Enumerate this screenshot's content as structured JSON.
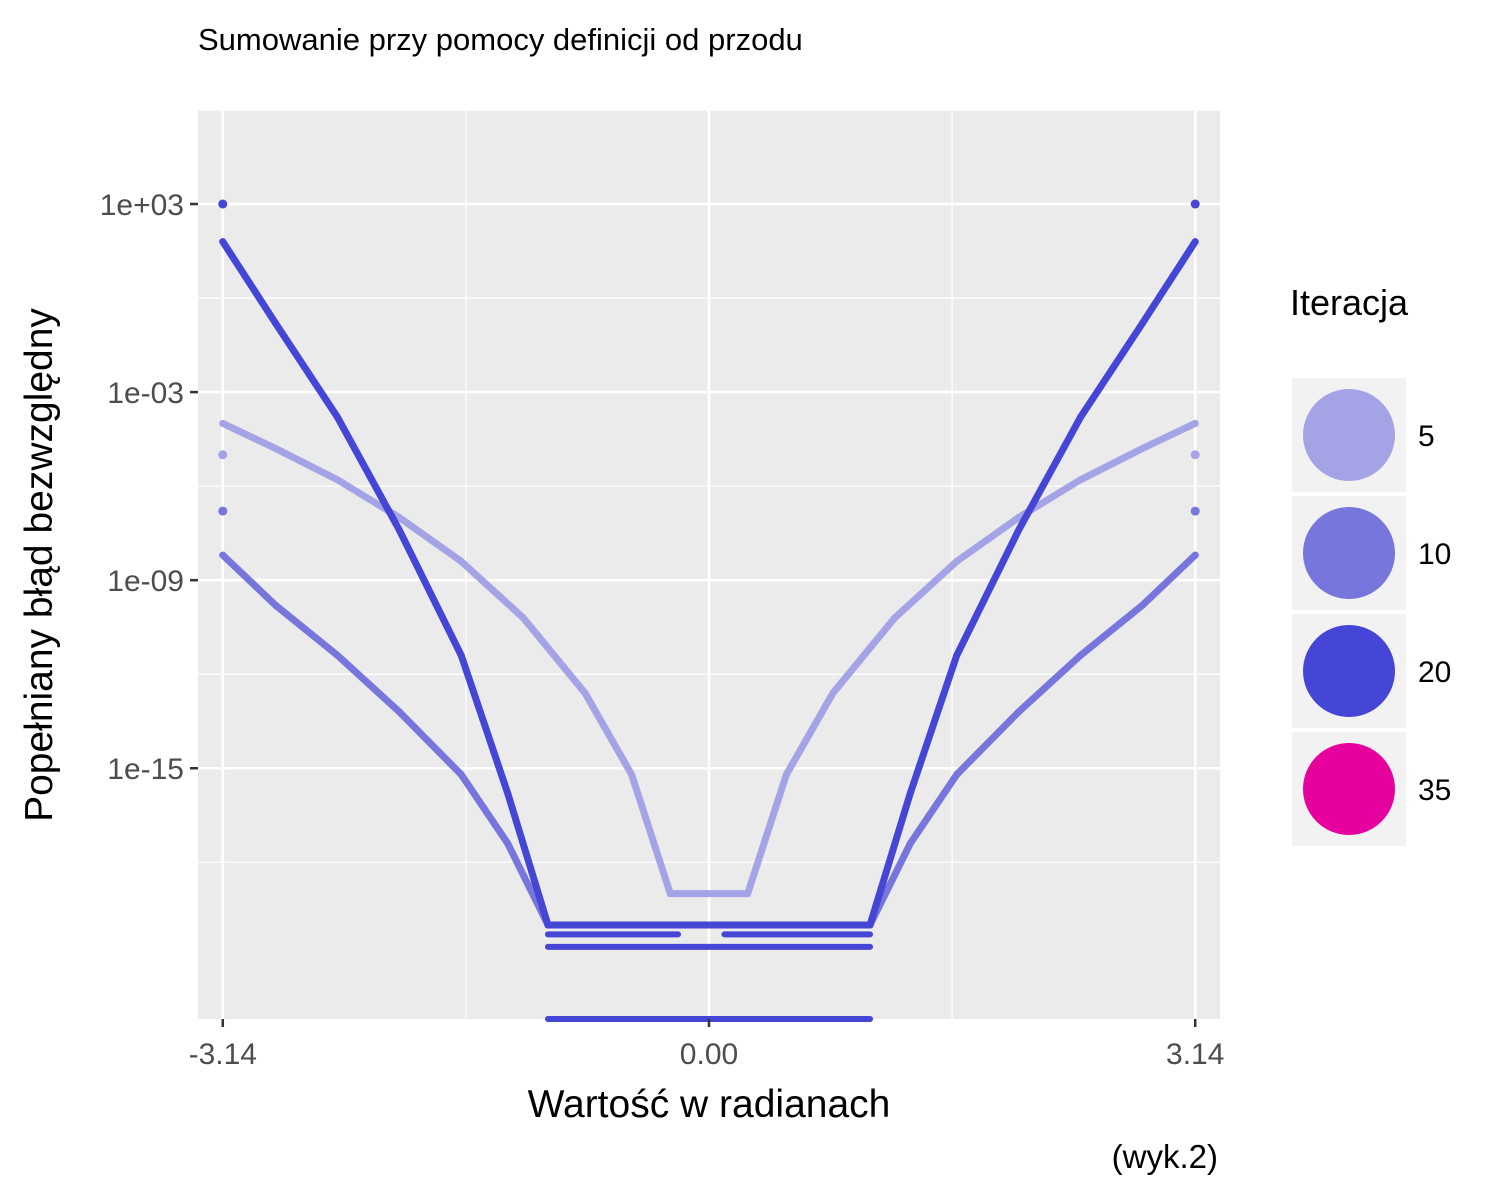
{
  "chart_data": {
    "type": "scatter",
    "title": "Sumowanie przy pomocy definicji od przodu",
    "xlabel": "Wartość w radianach",
    "ylabel": "Popełniany błąd bezwzględny",
    "caption": "(wyk.2)",
    "x_scale": "linear",
    "y_scale": "log10",
    "xlim": [
      -3.3,
      3.3
    ],
    "ylim": [
      1e-23,
      1000000.0
    ],
    "x_ticks": [
      -3.14,
      0.0,
      3.14
    ],
    "x_tick_labels": [
      "-3.14",
      "0.00",
      "3.14"
    ],
    "y_ticks": [
      1000.0,
      0.001,
      1e-09,
      1e-15
    ],
    "y_tick_labels": [
      "1e+03",
      "1e-03",
      "1e-09",
      "1e-15"
    ],
    "grid": true,
    "legend": {
      "title": "Iteracja",
      "position": "right",
      "entries": [
        {
          "label": "5",
          "color": "#a3a3e6"
        },
        {
          "label": "10",
          "color": "#7676dc"
        },
        {
          "label": "20",
          "color": "#4646d6"
        },
        {
          "label": "35",
          "color": "#e6009e"
        }
      ]
    },
    "series": [
      {
        "name": "5",
        "color": "#a3a3e6",
        "points": [
          {
            "x": -3.14,
            "y": 0.0001
          },
          {
            "x": -2.8,
            "y": 1.6e-05
          },
          {
            "x": -2.4,
            "y": 1.6e-06
          },
          {
            "x": -2.0,
            "y": 1e-07
          },
          {
            "x": -1.6,
            "y": 4e-09
          },
          {
            "x": -1.2,
            "y": 6.3e-11
          },
          {
            "x": -0.8,
            "y": 2.5e-13
          },
          {
            "x": -0.5,
            "y": 6.3e-16
          },
          {
            "x": -0.25,
            "y": 1e-19
          },
          {
            "x": 0.25,
            "y": 1e-19
          },
          {
            "x": 0.5,
            "y": 6.3e-16
          },
          {
            "x": 0.8,
            "y": 2.5e-13
          },
          {
            "x": 1.2,
            "y": 6.3e-11
          },
          {
            "x": 1.6,
            "y": 4e-09
          },
          {
            "x": 2.0,
            "y": 1e-07
          },
          {
            "x": 2.4,
            "y": 1.6e-06
          },
          {
            "x": 2.8,
            "y": 1.6e-05
          },
          {
            "x": 3.14,
            "y": 0.0001
          }
        ]
      },
      {
        "name": "10",
        "color": "#7676dc",
        "points": [
          {
            "x": -3.14,
            "y": 6.3e-09
          },
          {
            "x": -2.8,
            "y": 1.6e-10
          },
          {
            "x": -2.4,
            "y": 4e-12
          },
          {
            "x": -2.0,
            "y": 6.3e-14
          },
          {
            "x": -1.6,
            "y": 6.3e-16
          },
          {
            "x": -1.3,
            "y": 4e-18
          },
          {
            "x": -1.04,
            "y": 1e-20
          },
          {
            "x": 1.04,
            "y": 1e-20
          },
          {
            "x": 1.3,
            "y": 4e-18
          },
          {
            "x": 1.6,
            "y": 6.3e-16
          },
          {
            "x": 2.0,
            "y": 6.3e-14
          },
          {
            "x": 2.4,
            "y": 4e-12
          },
          {
            "x": 2.8,
            "y": 1.6e-10
          },
          {
            "x": 3.14,
            "y": 6.3e-09
          }
        ]
      },
      {
        "name": "20",
        "color": "#4646d6",
        "points": [
          {
            "x": -3.14,
            "y": 63
          },
          {
            "x": -2.8,
            "y": 0.16
          },
          {
            "x": -2.4,
            "y": 0.00016
          },
          {
            "x": -2.0,
            "y": 4e-08
          },
          {
            "x": -1.6,
            "y": 4e-12
          },
          {
            "x": -1.3,
            "y": 1.6e-16
          },
          {
            "x": -1.04,
            "y": 1e-20
          },
          {
            "x": 1.04,
            "y": 1e-20
          },
          {
            "x": 1.3,
            "y": 1.6e-16
          },
          {
            "x": 1.6,
            "y": 4e-12
          },
          {
            "x": 2.0,
            "y": 4e-08
          },
          {
            "x": 2.4,
            "y": 0.00016
          },
          {
            "x": 2.8,
            "y": 0.16
          },
          {
            "x": 3.14,
            "y": 63
          }
        ]
      }
    ],
    "floor_bands": [
      {
        "series": "10",
        "color": "#4646d6",
        "x": [
          -1.04,
          -0.2
        ],
        "y": 5e-21
      },
      {
        "series": "10",
        "color": "#4646d6",
        "x": [
          0.1,
          1.04
        ],
        "y": 5e-21
      },
      {
        "series": "20",
        "color": "#4646d6",
        "x": [
          -1.04,
          1.04
        ],
        "y": 2e-21
      },
      {
        "series": "20",
        "color": "#4646d6",
        "x": [
          -1.04,
          1.04
        ],
        "y": 1e-23
      }
    ],
    "outliers": [
      {
        "series": "20",
        "color": "#4646d6",
        "x": -3.14,
        "y": 1000
      },
      {
        "series": "20",
        "color": "#4646d6",
        "x": 3.14,
        "y": 1000
      },
      {
        "series": "5",
        "color": "#a3a3e6",
        "x": -3.14,
        "y": 1e-05
      },
      {
        "series": "5",
        "color": "#a3a3e6",
        "x": 3.14,
        "y": 1e-05
      },
      {
        "series": "10",
        "color": "#7676dc",
        "x": -3.14,
        "y": 1.6e-07
      },
      {
        "series": "10",
        "color": "#7676dc",
        "x": 3.14,
        "y": 1.6e-07
      }
    ]
  }
}
